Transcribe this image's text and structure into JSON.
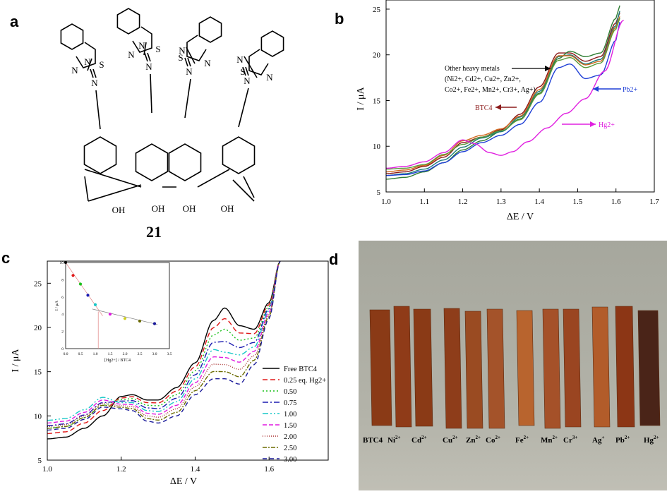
{
  "panels": {
    "a": {
      "letter": "a",
      "compound_label": "21",
      "atoms": {
        "S": "S",
        "N": "N",
        "OH": "OH"
      }
    },
    "b": {
      "letter": "b"
    },
    "c": {
      "letter": "c"
    },
    "d": {
      "letter": "d",
      "strip_labels": [
        "BTC4",
        "Ni",
        "Cd",
        "Cu",
        "Zn",
        "Co",
        "Fe",
        "Mn",
        "Cr",
        "Ag",
        "Pb",
        "Hg"
      ],
      "strip_label_sups": [
        "",
        "2+",
        "2+",
        "2+",
        "2+",
        "2+",
        "2+",
        "2+",
        "3+",
        "+",
        "2+",
        "2+"
      ]
    }
  },
  "chart_data": [
    {
      "id": "b",
      "type": "line",
      "xlabel": "ΔE / V",
      "ylabel": "I / μA",
      "xlim": [
        1.0,
        1.7
      ],
      "ylim": [
        5,
        26
      ],
      "xticks": [
        "1.0",
        "1.1",
        "1.2",
        "1.3",
        "1.4",
        "1.5",
        "1.6",
        "1.7"
      ],
      "yticks": [
        "5",
        "10",
        "15",
        "20",
        "25"
      ],
      "annotations": {
        "other_line1": "Other heavy metals",
        "other_line2": "(Ni2+, Cd2+, Cu2+, Zn2+,",
        "other_line3": "Co2+, Fe2+, Mn2+, Cr3+, Ag+)",
        "btc4": "BTC4",
        "pb": "Pb2+",
        "hg": "Hg2+"
      },
      "series": [
        {
          "key": "btc4",
          "color": "#8b1a1a",
          "x": [
            1.0,
            1.05,
            1.1,
            1.15,
            1.2,
            1.25,
            1.3,
            1.35,
            1.4,
            1.45,
            1.48,
            1.52,
            1.56,
            1.6,
            1.61
          ],
          "y": [
            7.0,
            7.2,
            7.8,
            8.8,
            10.4,
            11.0,
            11.8,
            13.5,
            16.5,
            20.2,
            20.2,
            19.3,
            19.8,
            23.5,
            24.6
          ]
        },
        {
          "key": "other",
          "color": "#2e7d32",
          "x": [
            1.0,
            1.05,
            1.1,
            1.15,
            1.2,
            1.25,
            1.3,
            1.35,
            1.4,
            1.45,
            1.48,
            1.52,
            1.56,
            1.6,
            1.61
          ],
          "y": [
            6.4,
            6.6,
            7.2,
            8.2,
            9.6,
            10.6,
            11.6,
            13.0,
            15.8,
            19.6,
            20.4,
            19.8,
            20.2,
            24.0,
            25.4
          ]
        },
        {
          "key": "other",
          "color": "#1a7a7a",
          "x": [
            1.0,
            1.05,
            1.1,
            1.15,
            1.2,
            1.25,
            1.3,
            1.35,
            1.4,
            1.45,
            1.48,
            1.52,
            1.56,
            1.6,
            1.61
          ],
          "y": [
            6.8,
            7.0,
            7.5,
            8.5,
            9.9,
            10.9,
            11.6,
            13.2,
            16.0,
            19.8,
            20.0,
            19.0,
            19.5,
            23.2,
            24.8
          ]
        },
        {
          "key": "other",
          "color": "#d2691e",
          "x": [
            1.0,
            1.05,
            1.1,
            1.15,
            1.2,
            1.25,
            1.3,
            1.35,
            1.4,
            1.45,
            1.48,
            1.52,
            1.56,
            1.6,
            1.61
          ],
          "y": [
            7.2,
            7.4,
            7.9,
            9.0,
            10.6,
            11.2,
            11.9,
            13.3,
            16.2,
            19.9,
            19.9,
            18.9,
            19.3,
            23.0,
            24.2
          ]
        },
        {
          "key": "other",
          "color": "#5a9a3a",
          "x": [
            1.0,
            1.05,
            1.1,
            1.15,
            1.2,
            1.25,
            1.3,
            1.35,
            1.4,
            1.45,
            1.48,
            1.52,
            1.56,
            1.6,
            1.61
          ],
          "y": [
            7.5,
            7.6,
            8.0,
            9.1,
            10.2,
            11.0,
            11.7,
            12.9,
            15.7,
            19.4,
            19.7,
            18.6,
            19.1,
            22.8,
            24.0
          ]
        },
        {
          "key": "pb",
          "color": "#1f3fd6",
          "x": [
            1.0,
            1.05,
            1.1,
            1.15,
            1.2,
            1.25,
            1.3,
            1.35,
            1.4,
            1.45,
            1.48,
            1.52,
            1.56,
            1.6,
            1.61
          ],
          "y": [
            6.8,
            6.9,
            7.3,
            8.2,
            9.4,
            10.4,
            11.2,
            12.4,
            14.8,
            18.6,
            19.0,
            17.4,
            17.8,
            21.6,
            23.6
          ]
        },
        {
          "key": "hg",
          "color": "#e020e0",
          "x": [
            1.0,
            1.05,
            1.1,
            1.15,
            1.2,
            1.23,
            1.27,
            1.3,
            1.33,
            1.37,
            1.42,
            1.47,
            1.52,
            1.57,
            1.62
          ],
          "y": [
            7.6,
            7.8,
            8.3,
            9.3,
            10.7,
            10.3,
            9.3,
            9.0,
            9.4,
            10.5,
            12.0,
            13.6,
            15.2,
            18.2,
            23.8
          ]
        }
      ]
    },
    {
      "id": "c",
      "type": "line",
      "xlabel": "ΔE / V",
      "ylabel": "I / μA",
      "xlim": [
        1.0,
        1.76
      ],
      "ylim": [
        5,
        27.5
      ],
      "xticks": [
        "1.0",
        "1.2",
        "1.4",
        "1.6"
      ],
      "yticks": [
        "5",
        "10",
        "15",
        "20",
        "25"
      ],
      "legend_position": "right",
      "series": [
        {
          "name": "Free BTC4",
          "color": "#000000",
          "dash": "",
          "peak": 22.2,
          "base": 7.4
        },
        {
          "name": "0.25 eq. Hg2+",
          "color": "#e01818",
          "dash": "7,4",
          "peak": 21.0,
          "base": 8.0
        },
        {
          "name": "0.50",
          "color": "#19c019",
          "dash": "2,3",
          "peak": 19.8,
          "base": 8.6
        },
        {
          "name": "0.75",
          "color": "#1a1ab0",
          "dash": "8,3,2,3",
          "peak": 18.4,
          "base": 8.9
        },
        {
          "name": "1.00",
          "color": "#17c7c7",
          "dash": "8,3,2,3,2,3",
          "peak": 17.2,
          "base": 9.5
        },
        {
          "name": "1.50",
          "color": "#e019e0",
          "dash": "6,3",
          "peak": 16.6,
          "base": 9.2
        },
        {
          "name": "2.00",
          "color": "#a52a2a",
          "dash": "1,2",
          "peak": 15.8,
          "base": 8.8
        },
        {
          "name": "2.50",
          "color": "#6b6b00",
          "dash": "6,2,2,2",
          "peak": 15.0,
          "base": 8.6
        },
        {
          "name": "3.00",
          "color": "#1a1a9a",
          "dash": "6,4",
          "peak": 14.2,
          "base": 8.4
        }
      ],
      "inset": {
        "xlabel": "[Hg2+] / BTC4",
        "ylabel": "I / μA",
        "xlim": [
          0,
          3.5
        ],
        "ylim": [
          0,
          10
        ],
        "xticks": [
          "0.0",
          "0.5",
          "1.0",
          "1.5",
          "2.0",
          "2.5",
          "3.0",
          "3.5"
        ],
        "yticks": [
          "0",
          "2",
          "4",
          "6",
          "8",
          "10"
        ],
        "points": [
          {
            "x": 0.0,
            "y": 10.0,
            "color": "#000000"
          },
          {
            "x": 0.25,
            "y": 8.5,
            "color": "#e01818"
          },
          {
            "x": 0.5,
            "y": 7.5,
            "color": "#19c019"
          },
          {
            "x": 0.75,
            "y": 6.2,
            "color": "#1a1ab0"
          },
          {
            "x": 1.0,
            "y": 5.1,
            "color": "#17c7c7"
          },
          {
            "x": 1.5,
            "y": 4.0,
            "color": "#e019e0"
          },
          {
            "x": 2.0,
            "y": 3.5,
            "color": "#d0d020"
          },
          {
            "x": 2.5,
            "y": 3.2,
            "color": "#6b6b00"
          },
          {
            "x": 3.0,
            "y": 2.9,
            "color": "#1a1a9a"
          }
        ]
      }
    }
  ]
}
